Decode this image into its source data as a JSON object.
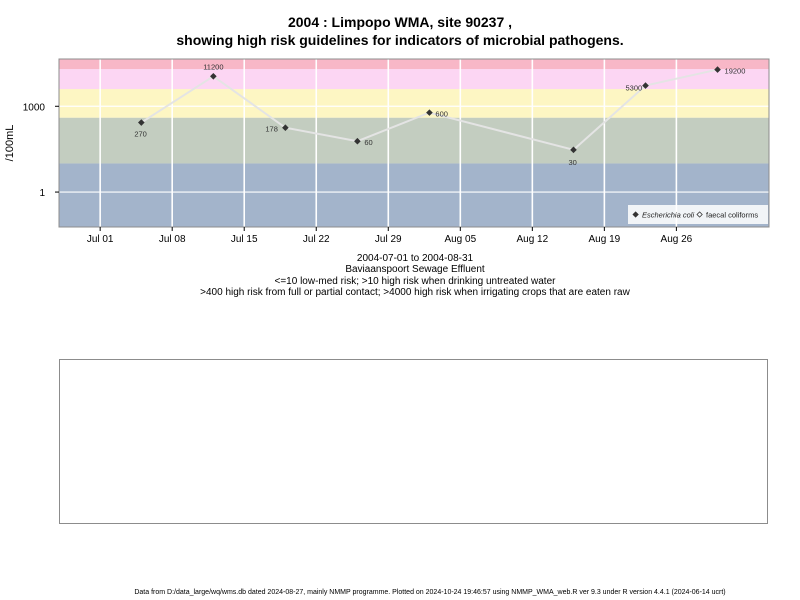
{
  "header": {
    "title_line1": "2004 : Limpopo WMA, site 90237 ,",
    "title_line2": "showing high risk guidelines for indicators of microbial pathogens."
  },
  "captions": {
    "date_range": "2004-07-01 to 2004-08-31",
    "site_name": "Baviaanspoort Sewage Effluent",
    "guideline_1": "<=10 low-med risk; >10 high risk when drinking untreated water",
    "guideline_2": ">400 high risk from full or partial contact; >4000 high risk when irrigating crops that are eaten raw"
  },
  "footer": {
    "text": "Data from D:/data_large/wq/wms.db dated 2024-08-27, mainly NMMP programme. Plotted on 2024-10-24 19:46:57 using NMMP_WMA_web.R ver 9.3 under R version 4.4.1 (2024-06-14 ucrt)"
  },
  "chart_data": {
    "type": "line",
    "title": "2004 : Limpopo WMA, site 90237 ,",
    "subtitle": "showing high risk guidelines for indicators of microbial pathogens.",
    "ylabel": "/100mL",
    "xlabel": "",
    "y_scale": "log10",
    "ylim": [
      0.06,
      45000
    ],
    "xlim": [
      "2004-06-27",
      "2004-09-04"
    ],
    "x_ticks": [
      {
        "date": "2004-07-01",
        "label": "Jul 01"
      },
      {
        "date": "2004-07-08",
        "label": "Jul 08"
      },
      {
        "date": "2004-07-15",
        "label": "Jul 15"
      },
      {
        "date": "2004-07-22",
        "label": "Jul 22"
      },
      {
        "date": "2004-07-29",
        "label": "Jul 29"
      },
      {
        "date": "2004-08-05",
        "label": "Aug 05"
      },
      {
        "date": "2004-08-12",
        "label": "Aug 12"
      },
      {
        "date": "2004-08-19",
        "label": "Aug 19"
      },
      {
        "date": "2004-08-26",
        "label": "Aug 26"
      }
    ],
    "y_ticks": [
      {
        "value": 1,
        "label": "1"
      },
      {
        "value": 1000,
        "label": "1000"
      }
    ],
    "grid": true,
    "risk_bands": [
      {
        "from": 0.06,
        "to": 10,
        "color": "#a3b4cb"
      },
      {
        "from": 10,
        "to": 400,
        "color": "#c3cdc0"
      },
      {
        "from": 400,
        "to": 4000,
        "color": "#fdf6c3"
      },
      {
        "from": 4000,
        "to": 20000,
        "color": "#fcd6f3"
      },
      {
        "from": 20000,
        "to": 45000,
        "color": "#f8b7c7"
      }
    ],
    "series": [
      {
        "name": "Escherichia coli",
        "marker": "diamond",
        "color": "#333333",
        "line_color": "#e4e4e4",
        "points": [
          {
            "x": "2004-07-05",
            "y": 270,
            "label": "270"
          },
          {
            "x": "2004-07-12",
            "y": 11200,
            "label": "11200"
          },
          {
            "x": "2004-07-19",
            "y": 178,
            "label": "178"
          },
          {
            "x": "2004-07-26",
            "y": 60,
            "label": "60"
          },
          {
            "x": "2004-08-02",
            "y": 600,
            "label": "600"
          },
          {
            "x": "2004-08-16",
            "y": 30,
            "label": "30"
          },
          {
            "x": "2004-08-23",
            "y": 5300,
            "label": "5300"
          },
          {
            "x": "2004-08-30",
            "y": 19200,
            "label": "19200"
          }
        ]
      },
      {
        "name": "faecal coliforms",
        "marker": "open-diamond",
        "color": "#333333",
        "points": []
      }
    ],
    "legend": {
      "placement": "bottom-right",
      "entries": [
        {
          "label": "Escherichia coli",
          "marker": "diamond",
          "italic": true
        },
        {
          "label": "faecal coliforms",
          "marker": "open-diamond",
          "italic": false
        }
      ]
    }
  }
}
